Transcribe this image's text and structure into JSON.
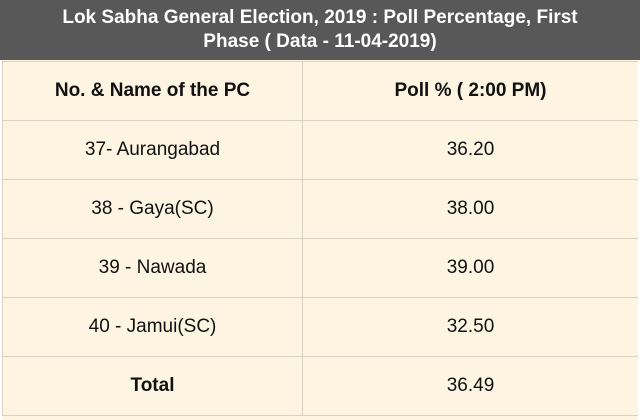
{
  "title": {
    "line1": "Lok Sabha General Election, 2019 : Poll Percentage, First",
    "line2": "Phase ( Data - 11-04-2019)"
  },
  "table": {
    "headers": [
      "No. & Name of the PC",
      "Poll % ( 2:00 PM)"
    ],
    "rows": [
      [
        "37- Aurangabad",
        "36.20"
      ],
      [
        "38 - Gaya(SC)",
        "38.00"
      ],
      [
        "39 - Nawada",
        "39.00"
      ],
      [
        "40 - Jamui(SC)",
        "32.50"
      ]
    ],
    "total": [
      "Total",
      "36.49"
    ]
  },
  "colors": {
    "title_background": "#585858",
    "title_text": "#ffffff",
    "table_background": "#fdf4e2",
    "grid_lines": "#d8d2c2"
  }
}
